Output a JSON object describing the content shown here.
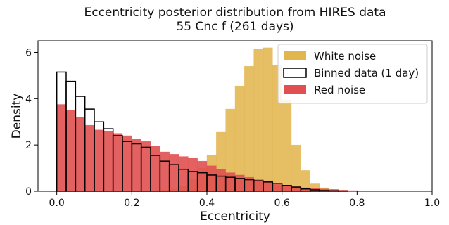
{
  "chart_data": {
    "type": "bar",
    "title": "Eccentricity posterior distribution from HIRES data",
    "subtitle": "55 Cnc f (261 days)",
    "xlabel": "Eccentricity",
    "ylabel": "Density",
    "xlim": [
      -0.05,
      1.0
    ],
    "ylim": [
      0,
      6.5
    ],
    "xticks": [
      "0.0",
      "0.2",
      "0.4",
      "0.6",
      "0.8",
      "1.0"
    ],
    "yticks": [
      "0",
      "2",
      "4",
      "6"
    ],
    "legend_position": "top-right",
    "bin_width": 0.025,
    "x": [
      0.0,
      0.025,
      0.05,
      0.075,
      0.1,
      0.125,
      0.15,
      0.175,
      0.2,
      0.225,
      0.25,
      0.275,
      0.3,
      0.325,
      0.35,
      0.375,
      0.4,
      0.425,
      0.45,
      0.475,
      0.5,
      0.525,
      0.55,
      0.575,
      0.6,
      0.625,
      0.65,
      0.675,
      0.7,
      0.725,
      0.75,
      0.775,
      0.8
    ],
    "series": [
      {
        "name": "White noise",
        "color": "#e2b64f",
        "style": "filled",
        "values": [
          0,
          0,
          0,
          0,
          0,
          0,
          0,
          0,
          0,
          0,
          0.02,
          0.05,
          0.1,
          0.22,
          0.5,
          1.0,
          1.55,
          2.55,
          3.55,
          4.55,
          5.4,
          6.15,
          6.2,
          5.45,
          3.95,
          2.0,
          0.9,
          0.35,
          0.15,
          0.05,
          0.02,
          0,
          0
        ]
      },
      {
        "name": "Binned data (1 day)",
        "color": "#000000",
        "style": "step",
        "values": [
          5.15,
          4.75,
          4.1,
          3.55,
          3.0,
          2.7,
          2.4,
          2.15,
          2.05,
          1.9,
          1.55,
          1.3,
          1.15,
          0.95,
          0.85,
          0.8,
          0.7,
          0.65,
          0.6,
          0.55,
          0.5,
          0.45,
          0.4,
          0.33,
          0.25,
          0.18,
          0.1,
          0.06,
          0.03,
          0.02,
          0.01,
          0,
          0
        ]
      },
      {
        "name": "Red noise",
        "color": "#e05050",
        "style": "filled",
        "values": [
          3.75,
          3.5,
          3.2,
          2.85,
          2.65,
          2.6,
          2.5,
          2.4,
          2.25,
          2.15,
          1.95,
          1.7,
          1.6,
          1.5,
          1.45,
          1.3,
          1.1,
          0.95,
          0.8,
          0.7,
          0.6,
          0.5,
          0.45,
          0.3,
          0.25,
          0.2,
          0.15,
          0.13,
          0.1,
          0.08,
          0.05,
          0.03,
          0.02
        ]
      }
    ]
  }
}
